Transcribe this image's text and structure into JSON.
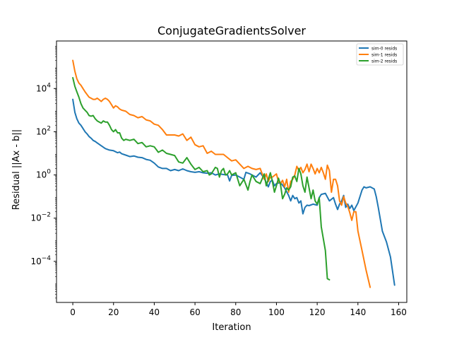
{
  "chart_data": {
    "type": "line",
    "title": "ConjugateGradientsSolver",
    "xlabel": "Iteration",
    "ylabel": "Residual ||Ax - b||",
    "xlim": [
      -8,
      164
    ],
    "ylim_exponents": [
      -5.9,
      6.2
    ],
    "yscale": "log",
    "xticks": [
      0,
      20,
      40,
      60,
      80,
      100,
      120,
      140,
      160
    ],
    "yticks": [
      {
        "exp": 4,
        "base": "10",
        "sup": "4"
      },
      {
        "exp": 2,
        "base": "10",
        "sup": "2"
      },
      {
        "exp": 0,
        "base": "10",
        "sup": "0"
      },
      {
        "exp": -2,
        "base": "10",
        "sup": "−2"
      },
      {
        "exp": -4,
        "base": "10",
        "sup": "−4"
      }
    ],
    "legend_position": "top-right",
    "grid": false,
    "series": [
      {
        "name": "sim-0 resids",
        "color": "#1f77b4",
        "points": [
          [
            0,
            3.5
          ],
          [
            1,
            2.9
          ],
          [
            2,
            2.6
          ],
          [
            3,
            2.4
          ],
          [
            4,
            2.3
          ],
          [
            5,
            2.15
          ],
          [
            6,
            2.0
          ],
          [
            7,
            1.9
          ],
          [
            8,
            1.78
          ],
          [
            9,
            1.7
          ],
          [
            10,
            1.6
          ],
          [
            11,
            1.55
          ],
          [
            12,
            1.48
          ],
          [
            14,
            1.35
          ],
          [
            16,
            1.22
          ],
          [
            18,
            1.15
          ],
          [
            20,
            1.12
          ],
          [
            22,
            1.03
          ],
          [
            23,
            1.06
          ],
          [
            24,
            0.98
          ],
          [
            26,
            0.92
          ],
          [
            28,
            0.85
          ],
          [
            30,
            0.88
          ],
          [
            32,
            0.82
          ],
          [
            34,
            0.8
          ],
          [
            36,
            0.72
          ],
          [
            38,
            0.68
          ],
          [
            40,
            0.55
          ],
          [
            42,
            0.37
          ],
          [
            44,
            0.3
          ],
          [
            46,
            0.3
          ],
          [
            48,
            0.2
          ],
          [
            50,
            0.25
          ],
          [
            52,
            0.2
          ],
          [
            54,
            0.28
          ],
          [
            56,
            0.2
          ],
          [
            58,
            0.15
          ],
          [
            60,
            0.12
          ],
          [
            62,
            0.15
          ],
          [
            64,
            0.1
          ],
          [
            66,
            0.08
          ],
          [
            68,
            0.1
          ],
          [
            70,
            0.0
          ],
          [
            72,
            0.05
          ],
          [
            74,
            0.02
          ],
          [
            76,
            0.0
          ],
          [
            77,
            -0.28
          ],
          [
            78,
            -0.02
          ],
          [
            80,
            0.0
          ],
          [
            82,
            -0.1
          ],
          [
            84,
            -0.2
          ],
          [
            85,
            0.12
          ],
          [
            87,
            0.05
          ],
          [
            89,
            -0.05
          ],
          [
            90,
            -0.1
          ],
          [
            92,
            0.1
          ],
          [
            94,
            -0.15
          ],
          [
            96,
            -0.55
          ],
          [
            97,
            -0.3
          ],
          [
            98,
            -0.25
          ],
          [
            99,
            -0.5
          ],
          [
            100,
            -0.4
          ],
          [
            102,
            -0.35
          ],
          [
            104,
            -0.6
          ],
          [
            106,
            -0.95
          ],
          [
            107,
            -1.2
          ],
          [
            108,
            -0.95
          ],
          [
            109,
            -1.1
          ],
          [
            110,
            -1.05
          ],
          [
            111,
            -1.3
          ],
          [
            112,
            -1.2
          ],
          [
            113,
            -1.8
          ],
          [
            114,
            -1.5
          ],
          [
            115,
            -1.4
          ],
          [
            116,
            -1.42
          ],
          [
            118,
            -1.35
          ],
          [
            120,
            -1.4
          ],
          [
            121,
            -1.05
          ],
          [
            122,
            -0.9
          ],
          [
            124,
            -0.85
          ],
          [
            126,
            -1.2
          ],
          [
            128,
            -1.05
          ],
          [
            129,
            -1.35
          ],
          [
            130,
            -1.6
          ],
          [
            131,
            -1.35
          ],
          [
            132,
            -1.2
          ],
          [
            133,
            -0.95
          ],
          [
            134,
            -1.5
          ],
          [
            135,
            -1.35
          ],
          [
            136,
            -1.55
          ],
          [
            137,
            -1.4
          ],
          [
            138,
            -1.65
          ],
          [
            140,
            -1.3
          ],
          [
            142,
            -0.7
          ],
          [
            143,
            -0.55
          ],
          [
            144,
            -0.6
          ],
          [
            146,
            -0.55
          ],
          [
            148,
            -0.65
          ],
          [
            149,
            -1.0
          ],
          [
            150,
            -1.5
          ],
          [
            152,
            -2.6
          ],
          [
            154,
            -3.1
          ],
          [
            156,
            -3.8
          ],
          [
            158,
            -5.1
          ]
        ]
      },
      {
        "name": "sim-1 resids",
        "color": "#ff7f0e",
        "points": [
          [
            0,
            5.3
          ],
          [
            1,
            4.8
          ],
          [
            2,
            4.45
          ],
          [
            3,
            4.25
          ],
          [
            4,
            4.15
          ],
          [
            5,
            4.0
          ],
          [
            6,
            3.85
          ],
          [
            7,
            3.72
          ],
          [
            8,
            3.6
          ],
          [
            9,
            3.55
          ],
          [
            10,
            3.5
          ],
          [
            11,
            3.5
          ],
          [
            12,
            3.55
          ],
          [
            13,
            3.48
          ],
          [
            14,
            3.4
          ],
          [
            15,
            3.5
          ],
          [
            16,
            3.55
          ],
          [
            17,
            3.5
          ],
          [
            18,
            3.4
          ],
          [
            19,
            3.25
          ],
          [
            20,
            3.1
          ],
          [
            21,
            3.2
          ],
          [
            22,
            3.15
          ],
          [
            23,
            3.05
          ],
          [
            24,
            3.0
          ],
          [
            26,
            2.95
          ],
          [
            28,
            2.8
          ],
          [
            30,
            2.75
          ],
          [
            32,
            2.65
          ],
          [
            34,
            2.7
          ],
          [
            36,
            2.55
          ],
          [
            38,
            2.5
          ],
          [
            40,
            2.35
          ],
          [
            42,
            2.3
          ],
          [
            44,
            2.1
          ],
          [
            46,
            1.85
          ],
          [
            48,
            1.85
          ],
          [
            50,
            1.85
          ],
          [
            52,
            1.8
          ],
          [
            54,
            1.9
          ],
          [
            56,
            1.6
          ],
          [
            58,
            1.75
          ],
          [
            60,
            1.4
          ],
          [
            62,
            1.3
          ],
          [
            64,
            1.35
          ],
          [
            66,
            1.0
          ],
          [
            68,
            1.1
          ],
          [
            70,
            0.95
          ],
          [
            72,
            0.95
          ],
          [
            74,
            0.95
          ],
          [
            76,
            0.8
          ],
          [
            78,
            0.65
          ],
          [
            80,
            0.7
          ],
          [
            82,
            0.5
          ],
          [
            84,
            0.3
          ],
          [
            86,
            0.4
          ],
          [
            88,
            0.3
          ],
          [
            90,
            0.25
          ],
          [
            92,
            0.3
          ],
          [
            94,
            -0.2
          ],
          [
            95,
            0.05
          ],
          [
            96,
            -0.3
          ],
          [
            97,
            -0.1
          ],
          [
            98,
            -0.1
          ],
          [
            100,
            0.05
          ],
          [
            101,
            -0.3
          ],
          [
            102,
            -0.4
          ],
          [
            103,
            -0.25
          ],
          [
            104,
            -0.55
          ],
          [
            105,
            -0.2
          ],
          [
            106,
            -0.8
          ],
          [
            107,
            -0.3
          ],
          [
            108,
            -0.2
          ],
          [
            109,
            0.0
          ],
          [
            110,
            0.4
          ],
          [
            111,
            0.2
          ],
          [
            112,
            0.35
          ],
          [
            113,
            0.1
          ],
          [
            114,
            0.25
          ],
          [
            115,
            0.5
          ],
          [
            116,
            0.15
          ],
          [
            117,
            0.5
          ],
          [
            118,
            0.3
          ],
          [
            119,
            0.05
          ],
          [
            120,
            0.3
          ],
          [
            121,
            0.1
          ],
          [
            122,
            0.35
          ],
          [
            123,
            0.1
          ],
          [
            124,
            -0.2
          ],
          [
            125,
            0.45
          ],
          [
            126,
            0.2
          ],
          [
            127,
            -0.8
          ],
          [
            128,
            -0.2
          ],
          [
            129,
            -0.2
          ],
          [
            130,
            -0.5
          ],
          [
            131,
            -1.2
          ],
          [
            132,
            -1.4
          ],
          [
            133,
            -1.0
          ],
          [
            134,
            -1.3
          ],
          [
            135,
            -1.45
          ],
          [
            136,
            -1.75
          ],
          [
            137,
            -2.1
          ],
          [
            138,
            -1.7
          ],
          [
            139,
            -1.7
          ],
          [
            140,
            -2.6
          ],
          [
            142,
            -3.5
          ],
          [
            144,
            -4.4
          ],
          [
            146,
            -5.2
          ]
        ]
      },
      {
        "name": "sim-2 resids",
        "color": "#2ca02c",
        "points": [
          [
            0,
            4.5
          ],
          [
            1,
            4.1
          ],
          [
            2,
            3.85
          ],
          [
            3,
            3.6
          ],
          [
            4,
            3.3
          ],
          [
            5,
            3.1
          ],
          [
            6,
            3.0
          ],
          [
            7,
            2.9
          ],
          [
            8,
            2.75
          ],
          [
            9,
            2.72
          ],
          [
            10,
            2.75
          ],
          [
            11,
            2.6
          ],
          [
            12,
            2.5
          ],
          [
            13,
            2.45
          ],
          [
            14,
            2.4
          ],
          [
            15,
            2.5
          ],
          [
            16,
            2.45
          ],
          [
            17,
            2.45
          ],
          [
            18,
            2.3
          ],
          [
            19,
            2.1
          ],
          [
            20,
            2.0
          ],
          [
            21,
            2.1
          ],
          [
            22,
            1.95
          ],
          [
            23,
            1.95
          ],
          [
            24,
            1.7
          ],
          [
            25,
            1.6
          ],
          [
            26,
            1.65
          ],
          [
            28,
            1.6
          ],
          [
            30,
            1.65
          ],
          [
            32,
            1.45
          ],
          [
            34,
            1.5
          ],
          [
            36,
            1.3
          ],
          [
            38,
            1.35
          ],
          [
            40,
            1.3
          ],
          [
            42,
            1.05
          ],
          [
            44,
            1.15
          ],
          [
            46,
            1.0
          ],
          [
            48,
            0.95
          ],
          [
            50,
            0.9
          ],
          [
            52,
            0.6
          ],
          [
            54,
            0.55
          ],
          [
            56,
            0.8
          ],
          [
            58,
            0.5
          ],
          [
            60,
            0.25
          ],
          [
            62,
            0.35
          ],
          [
            64,
            0.15
          ],
          [
            66,
            0.2
          ],
          [
            67,
            0.0
          ],
          [
            68,
            0.05
          ],
          [
            70,
            0.35
          ],
          [
            71,
            0.3
          ],
          [
            72,
            -0.1
          ],
          [
            73,
            0.2
          ],
          [
            74,
            0.3
          ],
          [
            75,
            0.0
          ],
          [
            76,
            0.05
          ],
          [
            77,
            0.2
          ],
          [
            78,
            0.0
          ],
          [
            80,
            0.1
          ],
          [
            82,
            -0.5
          ],
          [
            84,
            -0.2
          ],
          [
            86,
            -0.7
          ],
          [
            87,
            -0.3
          ],
          [
            88,
            0.0
          ],
          [
            90,
            -0.3
          ],
          [
            92,
            -0.4
          ],
          [
            94,
            0.05
          ],
          [
            95,
            -0.5
          ],
          [
            96,
            -0.2
          ],
          [
            97,
            0.1
          ],
          [
            98,
            -0.3
          ],
          [
            99,
            -0.8
          ],
          [
            100,
            -0.5
          ],
          [
            101,
            -0.15
          ],
          [
            102,
            -0.45
          ],
          [
            103,
            -1.1
          ],
          [
            104,
            -0.9
          ],
          [
            105,
            -0.6
          ],
          [
            106,
            -0.7
          ],
          [
            107,
            -0.55
          ],
          [
            108,
            -0.1
          ],
          [
            109,
            -0.05
          ],
          [
            110,
            -0.3
          ],
          [
            111,
            0.3
          ],
          [
            112,
            0.05
          ],
          [
            113,
            -0.5
          ],
          [
            114,
            -0.8
          ],
          [
            115,
            -0.1
          ],
          [
            116,
            -0.6
          ],
          [
            117,
            -1.1
          ],
          [
            118,
            -0.7
          ],
          [
            119,
            -1.2
          ],
          [
            120,
            -1.35
          ],
          [
            121,
            -1.05
          ],
          [
            122,
            -2.4
          ],
          [
            124,
            -3.5
          ],
          [
            125,
            -4.8
          ],
          [
            126,
            -4.85
          ]
        ]
      }
    ]
  }
}
